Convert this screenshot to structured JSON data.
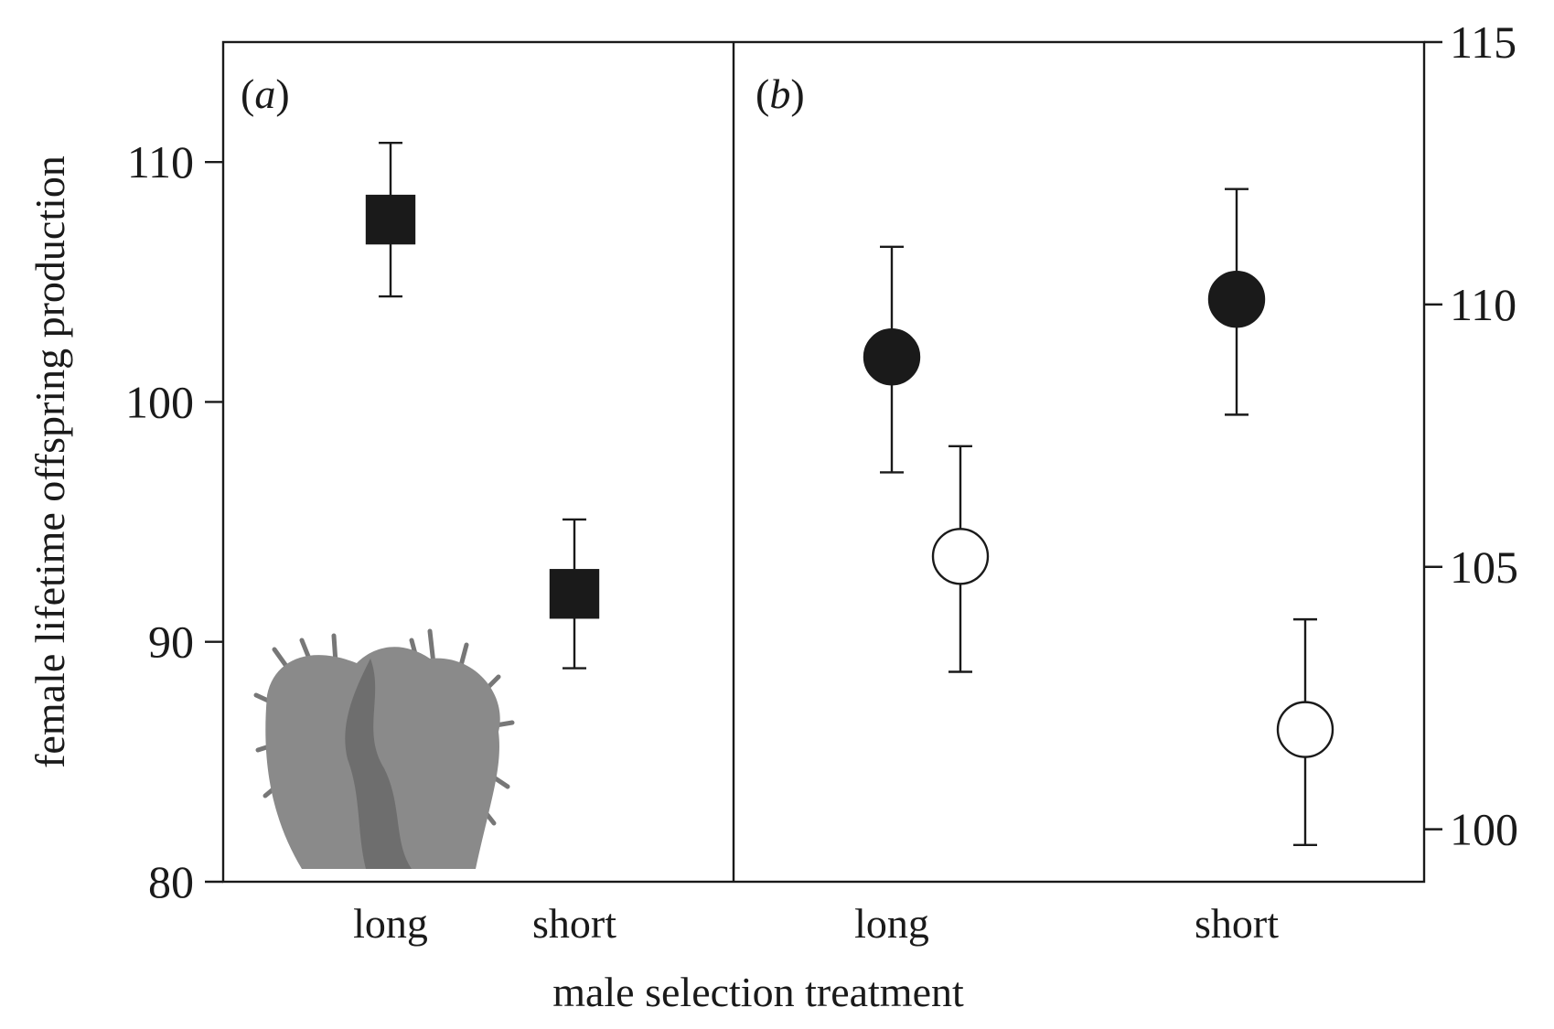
{
  "chart_data": {
    "type": "scatter",
    "xlabel": "male selection treatment",
    "ylabel": "female lifetime offspring production",
    "panels": [
      {
        "label": "(a)",
        "label_letter": "a",
        "y_axis_side": "left",
        "ylim": [
          80,
          115
        ],
        "yticks": [
          80,
          90,
          100,
          110
        ],
        "categories": [
          "long",
          "short"
        ],
        "series": [
          {
            "name": "filled squares",
            "marker": "square",
            "fill": "#1a1a1a",
            "points": [
              {
                "category": "long",
                "y": 107.6,
                "lower": 104.4,
                "upper": 110.8
              },
              {
                "category": "short",
                "y": 92.0,
                "lower": 88.9,
                "upper": 95.1
              }
            ]
          }
        ],
        "inset_image": "spiny-genitalia-micrograph"
      },
      {
        "label": "(b)",
        "label_letter": "b",
        "y_axis_side": "right",
        "ylim": [
          99,
          115
        ],
        "yticks": [
          100,
          105,
          110,
          115
        ],
        "categories": [
          "long",
          "short"
        ],
        "series": [
          {
            "name": "filled circles",
            "marker": "circle",
            "fill": "#1a1a1a",
            "points": [
              {
                "category": "long",
                "y": 109.0,
                "lower": 106.8,
                "upper": 111.1
              },
              {
                "category": "short",
                "y": 110.1,
                "lower": 107.9,
                "upper": 112.2
              }
            ]
          },
          {
            "name": "open circles",
            "marker": "circle",
            "fill": "#ffffff",
            "points": [
              {
                "category": "long",
                "y": 105.2,
                "lower": 103.0,
                "upper": 107.3
              },
              {
                "category": "short",
                "y": 101.9,
                "lower": 99.7,
                "upper": 104.0
              }
            ]
          }
        ]
      }
    ]
  }
}
